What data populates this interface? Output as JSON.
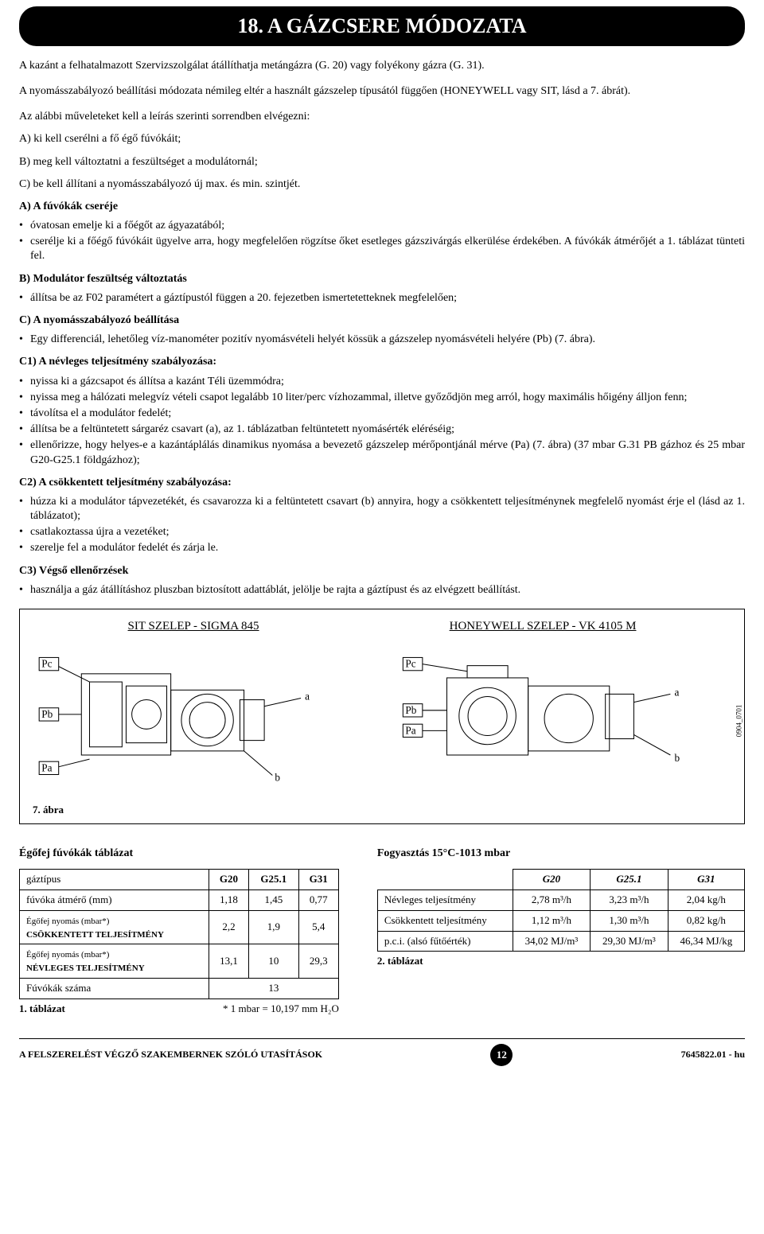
{
  "banner": "18. A GÁZCSERE MÓDOZATA",
  "intro1": "A kazánt a felhatalmazott Szervizszolgálat átállíthatja metángázra (G. 20) vagy folyékony gázra (G. 31).",
  "intro2": "A nyomásszabályozó beállítási módozata némileg eltér a használt gázszelep típusától függően (HONEYWELL vagy SIT, lásd a 7. ábrát).",
  "ops_lead": "Az alábbi műveleteket kell a leírás szerinti sorrendben elvégezni:",
  "ops": {
    "a": "A) ki kell cserélni a fő égő fúvókáit;",
    "b": "B) meg kell változtatni a feszültséget a modulátornál;",
    "c": "C) be kell állítani a nyomásszabályozó új max. és min. szintjét."
  },
  "secA_title": "A) A fúvókák cseréje",
  "secA": {
    "b1": "óvatosan emelje ki a főégőt az ágyazatából;",
    "b2": "cserélje ki a főégő fúvókáit ügyelve arra, hogy megfelelően rögzítse őket esetleges gázszivárgás elkerülése érdekében. A fúvókák átmérőjét a 1. táblázat tünteti fel."
  },
  "secB_title": "B) Modulátor feszültség változtatás",
  "secB": {
    "b1": "állítsa be az F02 paramétert a gáztípustól függen a 20. fejezetben ismertetetteknek megfelelően;"
  },
  "secC_title": "C) A nyomásszabályozó beállítása",
  "secC": {
    "b1": "Egy differenciál, lehetőleg víz-manométer pozitív nyomásvételi helyét kössük a gázszelep nyomásvételi helyére (Pb) (7. ábra)."
  },
  "secC1_title": "C1) A névleges teljesítmény szabályozása:",
  "secC1": {
    "b1": "nyissa ki a gázcsapot és állítsa a kazánt Téli üzemmódra;",
    "b2": "nyissa meg a hálózati melegvíz vételi csapot legalább 10 liter/perc vízhozammal, illetve győződjön meg arról, hogy maximális hőigény álljon fenn;",
    "b3": "távolítsa el a modulátor fedelét;",
    "b4": "állítsa be a feltüntetett sárgaréz csavart (a), az 1. táblázatban feltüntetett nyomásérték eléréséig;",
    "b5": "ellenőrizze, hogy helyes-e a kazántáplálás dinamikus nyomása a bevezető gázszelep mérőpontjánál mérve (Pa) (7. ábra) (37 mbar G.31 PB gázhoz és 25 mbar G20-G25.1 földgázhoz);"
  },
  "secC2_title": "C2) A csökkentett teljesítmény szabályozása:",
  "secC2": {
    "b1": "húzza ki a modulátor tápvezetékét, és csavarozza ki a feltüntetett csavart (b)  annyira, hogy a csökkentett teljesítménynek megfelelő nyomást érje el (lásd az 1. táblázatot);",
    "b2": "csatlakoztassa újra a vezetéket;",
    "b3": "szerelje fel a modulátor fedelét és zárja le."
  },
  "secC3_title": "C3) Végső ellenőrzések",
  "secC3": {
    "b1": "használja a gáz átállításhoz pluszban biztosított adattáblát, jelölje be rajta a gáztípust és az elvégzett beállítást."
  },
  "figure": {
    "left_title": "SIT SZELEP - SIGMA 845",
    "right_title": "HONEYWELL SZELEP - VK 4105 M",
    "caption": "7. ábra",
    "side_code": "0904_0701",
    "labels": {
      "pc": "Pc",
      "pb": "Pb",
      "pa": "Pa",
      "a": "a",
      "b": "b"
    }
  },
  "table1": {
    "title": "Égőfej fúvókák táblázat",
    "headers": [
      "gáztípus",
      "G20",
      "G25.1",
      "G31"
    ],
    "rows": [
      {
        "label": "fúvóka átmérő (mm)",
        "v": [
          "1,18",
          "1,45",
          "0,77"
        ]
      },
      {
        "label": "Égőfej nyomás (mbar*)\nCSÖKKENTETT TELJESÍTMÉNY",
        "v": [
          "2,2",
          "1,9",
          "5,4"
        ]
      },
      {
        "label": "Égőfej nyomás (mbar*)\nNÉVLEGES TELJESÍTMÉNY",
        "v": [
          "13,1",
          "10",
          "29,3"
        ]
      },
      {
        "label": "Fúvókák száma",
        "v": [
          "",
          "13",
          ""
        ],
        "span": true
      }
    ],
    "caption": "1. táblázat",
    "note": "* 1 mbar = 10,197 mm H₂O"
  },
  "table2": {
    "title": "Fogyasztás 15°C-1013 mbar",
    "headers": [
      "",
      "G20",
      "G25.1",
      "G31"
    ],
    "rows": [
      {
        "label": "Névleges teljesítmény",
        "bold": true,
        "v": [
          "2,78 m³/h",
          "3,23 m³/h",
          "2,04 kg/h"
        ]
      },
      {
        "label": "Csökkentett teljesítmény",
        "bold": true,
        "v": [
          "1,12 m³/h",
          "1,30 m³/h",
          "0,82 kg/h"
        ]
      },
      {
        "label": "p.c.i. (alsó fűtőérték)",
        "bold": true,
        "v": [
          "34,02 MJ/m³",
          "29,30 MJ/m³",
          "46,34 MJ/kg"
        ]
      }
    ],
    "caption": "2. táblázat"
  },
  "footer": {
    "left": "A FELSZERELÉST VÉGZŐ SZAKEMBERNEK SZÓLÓ UTASÍTÁSOK",
    "page": "12",
    "right": "7645822.01 - hu"
  }
}
